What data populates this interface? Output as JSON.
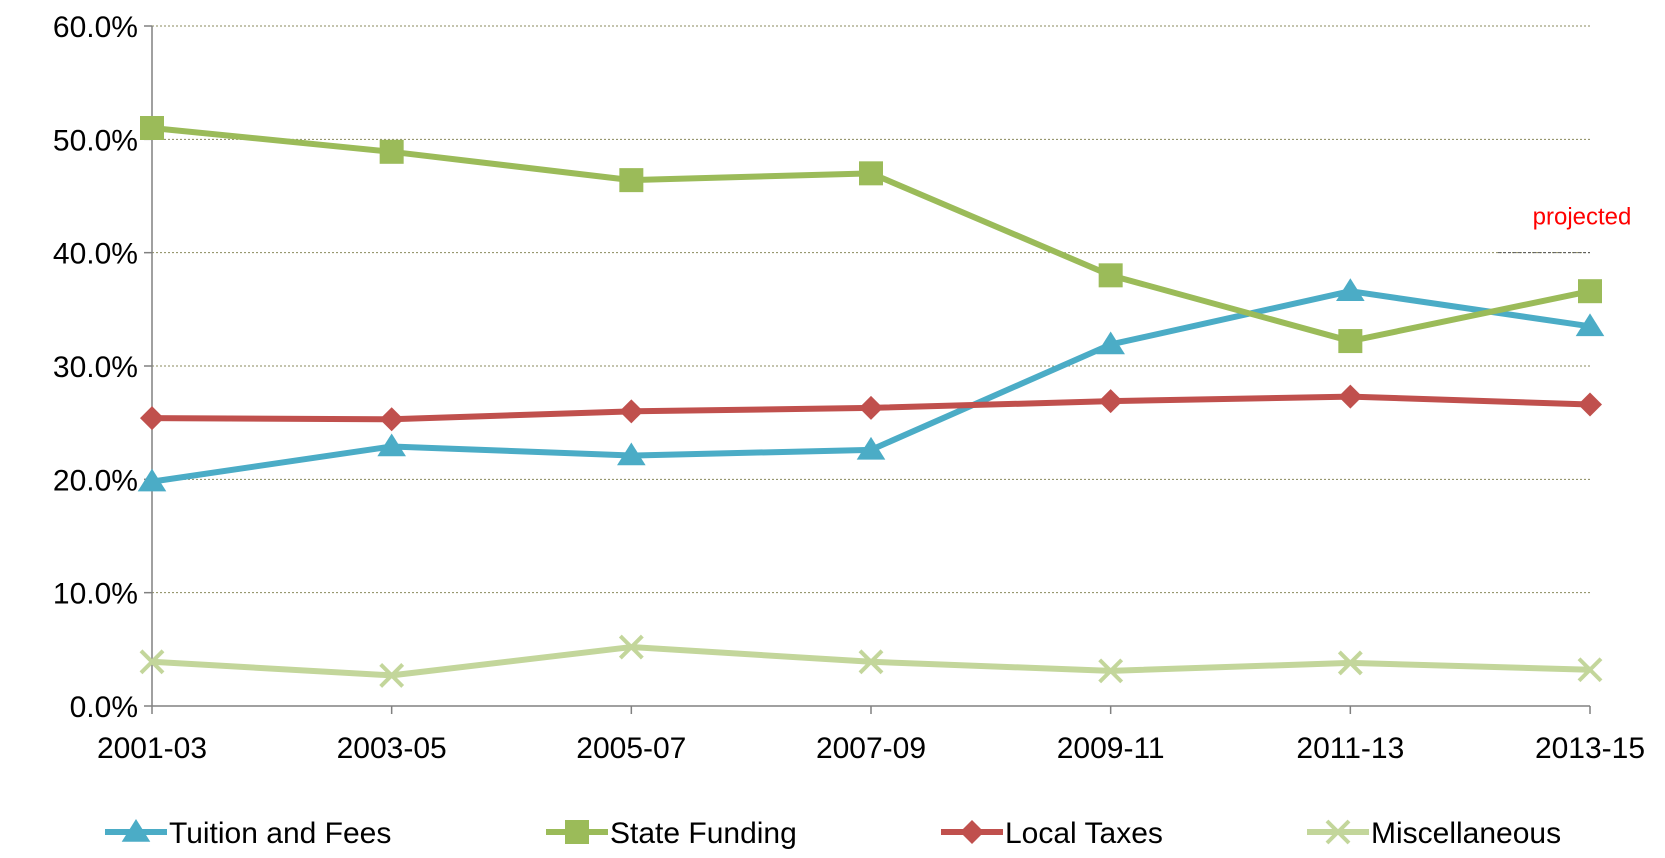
{
  "chart_data": {
    "type": "line",
    "title": "",
    "xlabel": "",
    "ylabel": "",
    "categories": [
      "2001-03",
      "2003-05",
      "2005-07",
      "2007-09",
      "2009-11",
      "2011-13",
      "2013-15"
    ],
    "ylim": [
      0,
      60
    ],
    "yticks": [
      {
        "value": 0,
        "label": "0.0%"
      },
      {
        "value": 10,
        "label": "10.0%"
      },
      {
        "value": 20,
        "label": "20.0%"
      },
      {
        "value": 30,
        "label": "30.0%"
      },
      {
        "value": 40,
        "label": "40.0%"
      },
      {
        "value": 50,
        "label": "50.0%"
      },
      {
        "value": 60,
        "label": "60.0%"
      }
    ],
    "grid": true,
    "legend_position": "bottom",
    "annotation": {
      "text": "projected",
      "category_index": 6,
      "y": 40
    },
    "series": [
      {
        "name": "Tuition and Fees",
        "color": "#4bacc6",
        "marker": "triangle",
        "values": [
          19.8,
          22.9,
          22.1,
          22.6,
          31.9,
          36.6,
          33.5
        ]
      },
      {
        "name": "State Funding",
        "color": "#9bbb59",
        "marker": "square",
        "values": [
          51.0,
          48.9,
          46.4,
          47.0,
          38.0,
          32.2,
          36.6
        ]
      },
      {
        "name": "Local Taxes",
        "color": "#c0504d",
        "marker": "diamond",
        "values": [
          25.4,
          25.3,
          26.0,
          26.3,
          26.9,
          27.3,
          26.6
        ]
      },
      {
        "name": "Miscellaneous",
        "color": "#c3d69b",
        "marker": "x",
        "values": [
          3.9,
          2.7,
          5.2,
          3.9,
          3.1,
          3.8,
          3.2
        ]
      }
    ]
  }
}
